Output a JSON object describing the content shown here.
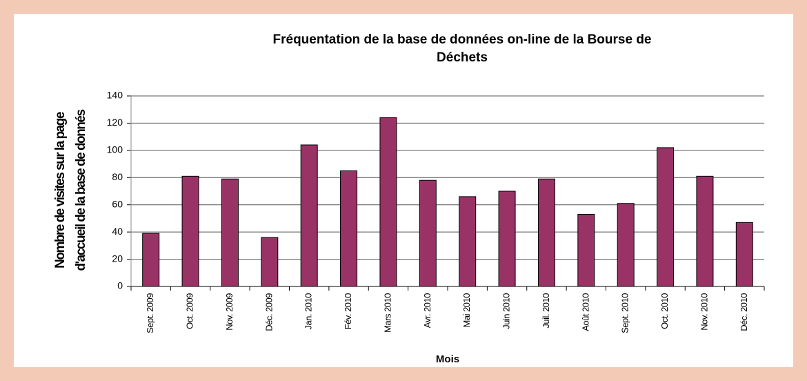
{
  "chart_data": {
    "type": "bar",
    "title": [
      "Fréquentation de la base de données on-line de la Bourse de",
      "Déchets"
    ],
    "ylabel": [
      "Nombre de visites sur la page",
      "d'accueil de la base de donnés"
    ],
    "xlabel": "Mois",
    "categories": [
      "Sept. 2009",
      "Oct. 2009",
      "Nov. 2009",
      "Déc. 2009",
      "Jan. 2010",
      "Fév. 2010",
      "Mars 2010",
      "Avr. 2010",
      "Mai 2010",
      "Juin 2010",
      "Juil. 2010",
      "Août 2010",
      "Sept. 2010",
      "Oct. 2010",
      "Nov. 2010",
      "Déc. 2010"
    ],
    "values": [
      39,
      81,
      79,
      36,
      104,
      85,
      124,
      78,
      66,
      70,
      79,
      53,
      61,
      102,
      81,
      47
    ],
    "color": "#993366",
    "ylim": [
      0,
      140
    ],
    "yticks": [
      0,
      20,
      40,
      60,
      80,
      100,
      120,
      140
    ],
    "grid": true
  }
}
